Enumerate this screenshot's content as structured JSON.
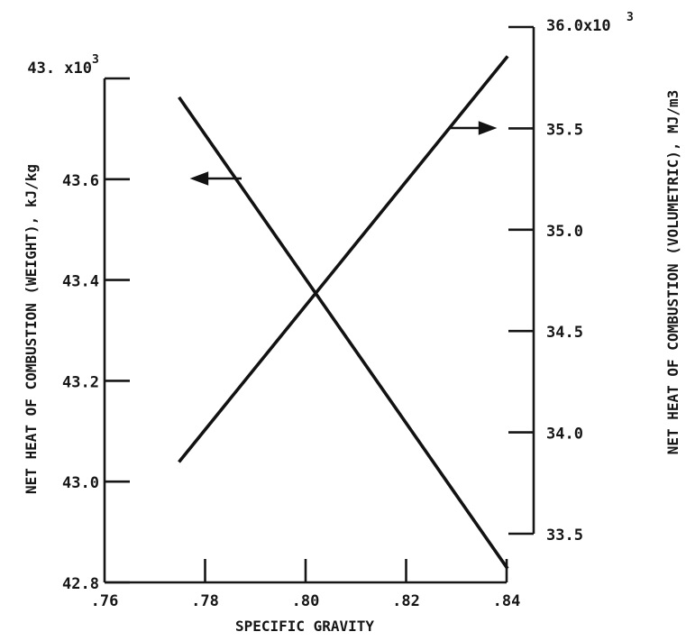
{
  "chart_data": {
    "type": "line",
    "xlabel": "SPECIFIC GRAVITY",
    "ylabel_left": "NET HEAT OF COMBUSTION (WEIGHT), kJ/kg",
    "ylabel_right": "NET HEAT OF COMBUSTION (VOLUMETRIC), MJ/m3",
    "xlim": [
      0.76,
      0.84
    ],
    "ylim_left": [
      42.8,
      43.8
    ],
    "ylim_right": [
      33.5,
      36.0
    ],
    "x_ticks": [
      0.76,
      0.78,
      0.8,
      0.82,
      0.84
    ],
    "x_tick_labels": [
      ".76",
      ".78",
      ".80",
      ".82",
      ".84"
    ],
    "y_left_ticks": [
      42.8,
      43.0,
      43.2,
      43.4,
      43.6,
      43.8
    ],
    "y_left_tick_labels": [
      "42.8",
      "43.0",
      "43.2",
      "43.4",
      "43.6",
      "43. x10"
    ],
    "y_left_top_superscript": "3",
    "y_right_ticks": [
      33.5,
      34.0,
      34.5,
      35.0,
      35.5,
      36.0
    ],
    "y_right_tick_labels": [
      "33.5",
      "34.0",
      "34.5",
      "35.0",
      "35.5",
      "36.0x10"
    ],
    "y_right_top_superscript": "3",
    "grid": false,
    "series": [
      {
        "axis": "left",
        "arrow": "left",
        "x": [
          0.775,
          0.84
        ],
        "y": [
          43.76,
          42.83
        ]
      },
      {
        "axis": "right",
        "arrow": "right",
        "x": [
          0.775,
          0.84
        ],
        "y": [
          33.86,
          35.85
        ]
      }
    ]
  }
}
